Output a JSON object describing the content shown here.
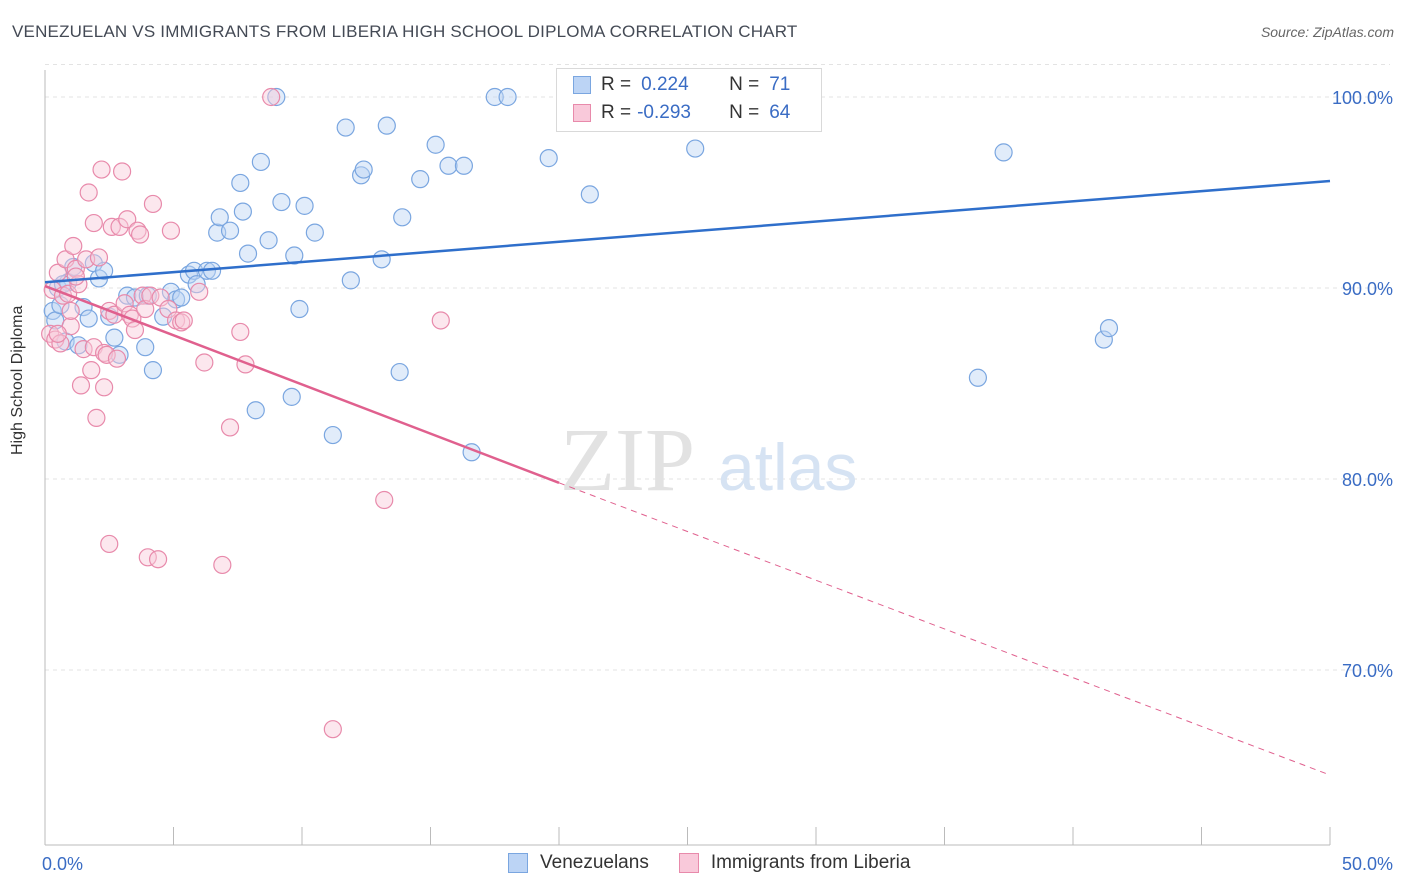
{
  "title": "VENEZUELAN VS IMMIGRANTS FROM LIBERIA HIGH SCHOOL DIPLOMA CORRELATION CHART",
  "source": "Source: ZipAtlas.com",
  "watermark": {
    "zip": "ZIP",
    "atlas": "atlas"
  },
  "legend_stats": [
    {
      "r_label": "R =",
      "r_value": "0.224",
      "n_label": "N =",
      "n_value": "71",
      "color": "#7aa6e0",
      "fill": "#bcd4f5"
    },
    {
      "r_label": "R =",
      "r_value": "-0.293",
      "n_label": "N =",
      "n_value": "64",
      "color": "#e88aab",
      "fill": "#f9c9da"
    }
  ],
  "bottom_legend": [
    {
      "label": "Venezuelans",
      "color": "#7aa6e0",
      "fill": "#bcd4f5"
    },
    {
      "label": "Immigrants from Liberia",
      "color": "#e88aab",
      "fill": "#f9c9da"
    }
  ],
  "chart_data": {
    "type": "scatter",
    "title": "VENEZUELAN VS IMMIGRANTS FROM LIBERIA HIGH SCHOOL DIPLOMA CORRELATION CHART",
    "xlabel": "",
    "ylabel": "High School Diploma",
    "xlim": [
      0,
      50
    ],
    "ylim": [
      61.5,
      102
    ],
    "x_tick_labels": [
      "0.0%",
      "50.0%"
    ],
    "y_ticks": [
      70,
      80,
      90,
      100
    ],
    "y_tick_labels": [
      "70.0%",
      "80.0%",
      "90.0%",
      "100.0%"
    ],
    "grid": true,
    "series": [
      {
        "name": "Venezuelans",
        "color": "#7aa6e0",
        "trend": {
          "x": [
            0,
            50
          ],
          "y": [
            90.3,
            95.6
          ],
          "style": "solid",
          "stroke": "#2f6fcb"
        },
        "points": [
          [
            0.3,
            88.8
          ],
          [
            0.4,
            88.3
          ],
          [
            0.5,
            90.0
          ],
          [
            0.6,
            89.1
          ],
          [
            0.8,
            87.2
          ],
          [
            0.9,
            90.3
          ],
          [
            1.1,
            91.1
          ],
          [
            1.3,
            87.0
          ],
          [
            1.5,
            89.0
          ],
          [
            1.7,
            88.4
          ],
          [
            1.9,
            91.3
          ],
          [
            2.1,
            90.5
          ],
          [
            2.3,
            90.9
          ],
          [
            2.5,
            88.5
          ],
          [
            2.7,
            87.4
          ],
          [
            2.9,
            86.5
          ],
          [
            3.2,
            89.6
          ],
          [
            3.5,
            89.5
          ],
          [
            3.9,
            86.9
          ],
          [
            4.0,
            89.6
          ],
          [
            4.2,
            85.7
          ],
          [
            4.6,
            88.5
          ],
          [
            4.9,
            89.8
          ],
          [
            5.1,
            89.4
          ],
          [
            5.3,
            89.5
          ],
          [
            5.6,
            90.7
          ],
          [
            5.8,
            90.9
          ],
          [
            5.9,
            90.2
          ],
          [
            6.3,
            90.9
          ],
          [
            6.5,
            90.9
          ],
          [
            6.7,
            92.9
          ],
          [
            6.8,
            93.7
          ],
          [
            7.2,
            93.0
          ],
          [
            7.6,
            95.5
          ],
          [
            7.7,
            94.0
          ],
          [
            7.9,
            91.8
          ],
          [
            8.2,
            83.6
          ],
          [
            8.4,
            96.6
          ],
          [
            8.7,
            92.5
          ],
          [
            9.0,
            100.0
          ],
          [
            9.2,
            94.5
          ],
          [
            9.6,
            84.3
          ],
          [
            9.7,
            91.7
          ],
          [
            9.9,
            88.9
          ],
          [
            10.1,
            94.3
          ],
          [
            10.5,
            92.9
          ],
          [
            11.2,
            82.3
          ],
          [
            11.7,
            98.4
          ],
          [
            11.9,
            90.4
          ],
          [
            12.3,
            95.9
          ],
          [
            12.4,
            96.2
          ],
          [
            13.1,
            91.5
          ],
          [
            13.3,
            98.5
          ],
          [
            13.8,
            85.6
          ],
          [
            13.9,
            93.7
          ],
          [
            14.6,
            95.7
          ],
          [
            15.2,
            97.5
          ],
          [
            15.7,
            96.4
          ],
          [
            16.3,
            96.4
          ],
          [
            16.6,
            81.4
          ],
          [
            17.5,
            100.0
          ],
          [
            18.0,
            100.0
          ],
          [
            19.6,
            96.8
          ],
          [
            21.2,
            94.9
          ],
          [
            22.8,
            100.0
          ],
          [
            25.3,
            97.3
          ],
          [
            36.3,
            85.3
          ],
          [
            37.3,
            97.1
          ],
          [
            41.2,
            87.3
          ],
          [
            41.4,
            87.9
          ],
          [
            0.7,
            90.2
          ]
        ]
      },
      {
        "name": "Immigrants from Liberia",
        "color": "#e88aab",
        "trend": {
          "x": [
            0,
            20.0,
            50
          ],
          "y": [
            90.1,
            79.8,
            64.5
          ],
          "solid_until": 20.0,
          "stroke": "#e0608e"
        },
        "points": [
          [
            0.2,
            87.6
          ],
          [
            0.3,
            89.9
          ],
          [
            0.4,
            87.3
          ],
          [
            0.5,
            90.8
          ],
          [
            0.6,
            87.1
          ],
          [
            0.7,
            89.6
          ],
          [
            0.8,
            91.5
          ],
          [
            0.9,
            89.7
          ],
          [
            1.0,
            88.0
          ],
          [
            1.0,
            88.8
          ],
          [
            1.1,
            92.2
          ],
          [
            1.2,
            91.0
          ],
          [
            1.3,
            90.2
          ],
          [
            1.4,
            84.9
          ],
          [
            1.5,
            86.8
          ],
          [
            1.6,
            91.5
          ],
          [
            1.7,
            95.0
          ],
          [
            1.8,
            85.7
          ],
          [
            1.9,
            86.9
          ],
          [
            1.9,
            93.4
          ],
          [
            2.0,
            83.2
          ],
          [
            2.1,
            91.6
          ],
          [
            2.2,
            96.2
          ],
          [
            2.3,
            84.8
          ],
          [
            2.3,
            86.6
          ],
          [
            2.4,
            86.5
          ],
          [
            2.5,
            88.8
          ],
          [
            2.5,
            76.6
          ],
          [
            2.6,
            93.2
          ],
          [
            2.7,
            88.6
          ],
          [
            2.8,
            86.3
          ],
          [
            2.9,
            93.2
          ],
          [
            3.0,
            96.1
          ],
          [
            3.1,
            89.2
          ],
          [
            3.2,
            93.6
          ],
          [
            3.3,
            88.6
          ],
          [
            3.4,
            88.4
          ],
          [
            3.5,
            87.8
          ],
          [
            3.6,
            93.0
          ],
          [
            3.7,
            92.8
          ],
          [
            3.8,
            89.6
          ],
          [
            3.9,
            88.9
          ],
          [
            4.0,
            75.9
          ],
          [
            4.1,
            89.6
          ],
          [
            4.2,
            94.4
          ],
          [
            4.4,
            75.8
          ],
          [
            4.5,
            89.5
          ],
          [
            4.8,
            88.9
          ],
          [
            4.9,
            93.0
          ],
          [
            5.1,
            88.3
          ],
          [
            5.3,
            88.2
          ],
          [
            5.4,
            88.3
          ],
          [
            6.2,
            86.1
          ],
          [
            6.9,
            75.5
          ],
          [
            7.2,
            82.7
          ],
          [
            7.6,
            87.7
          ],
          [
            7.8,
            86.0
          ],
          [
            8.8,
            100.0
          ],
          [
            11.2,
            66.9
          ],
          [
            13.2,
            78.9
          ],
          [
            15.4,
            88.3
          ],
          [
            0.5,
            87.6
          ],
          [
            1.2,
            90.6
          ],
          [
            6.0,
            89.8
          ]
        ]
      }
    ]
  }
}
